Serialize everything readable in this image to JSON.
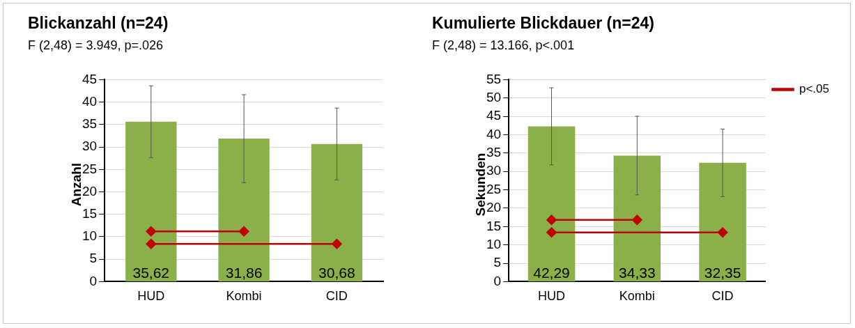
{
  "chart_data": [
    {
      "type": "bar",
      "title": "Blickanzahl (n=24)",
      "subtitle": "F (2,48) = 3.949, p=.026",
      "ylabel": "Anzahl",
      "categories": [
        "HUD",
        "Kombi",
        "CID"
      ],
      "values": [
        35.62,
        31.86,
        30.68
      ],
      "value_labels": [
        "35,62",
        "31,86",
        "30,68"
      ],
      "errors": [
        8,
        9.8,
        8
      ],
      "color": "#8bb04a",
      "ylim": [
        0,
        45
      ],
      "yticks": [
        0,
        5,
        10,
        15,
        20,
        25,
        30,
        35,
        40,
        45
      ],
      "grid": "y",
      "legend": false,
      "series": [
        {
          "type": "line",
          "color": "#c00000",
          "x": [
            "HUD",
            "Kombi"
          ],
          "values": [
            11.2,
            11.2
          ],
          "marker": "diamond"
        },
        {
          "type": "line",
          "color": "#c00000",
          "x": [
            "HUD",
            "CID"
          ],
          "values": [
            8.4,
            8.4
          ],
          "marker": "diamond"
        }
      ]
    },
    {
      "type": "bar",
      "title": "Kumulierte Blickdauer (n=24)",
      "subtitle": "F (2,48) = 13.166, p<.001",
      "ylabel": "Sekunden",
      "categories": [
        "HUD",
        "Kombi",
        "CID"
      ],
      "values": [
        42.29,
        34.33,
        32.35
      ],
      "value_labels": [
        "42,29",
        "34,33",
        "32,35"
      ],
      "errors": [
        10.5,
        10.7,
        9.2
      ],
      "color": "#8bb04a",
      "ylim": [
        0,
        55
      ],
      "yticks": [
        0,
        5,
        10,
        15,
        20,
        25,
        30,
        35,
        40,
        45,
        50,
        55
      ],
      "grid": "y",
      "legend": "top right",
      "series": [
        {
          "type": "line",
          "name": "p<.05",
          "color": "#c00000",
          "x": [
            "HUD",
            "Kombi"
          ],
          "values": [
            16.8,
            16.8
          ],
          "marker": "diamond"
        },
        {
          "type": "line",
          "color": "#c00000",
          "x": [
            "HUD",
            "CID"
          ],
          "values": [
            13.4,
            13.4
          ],
          "marker": "diamond"
        }
      ]
    }
  ]
}
